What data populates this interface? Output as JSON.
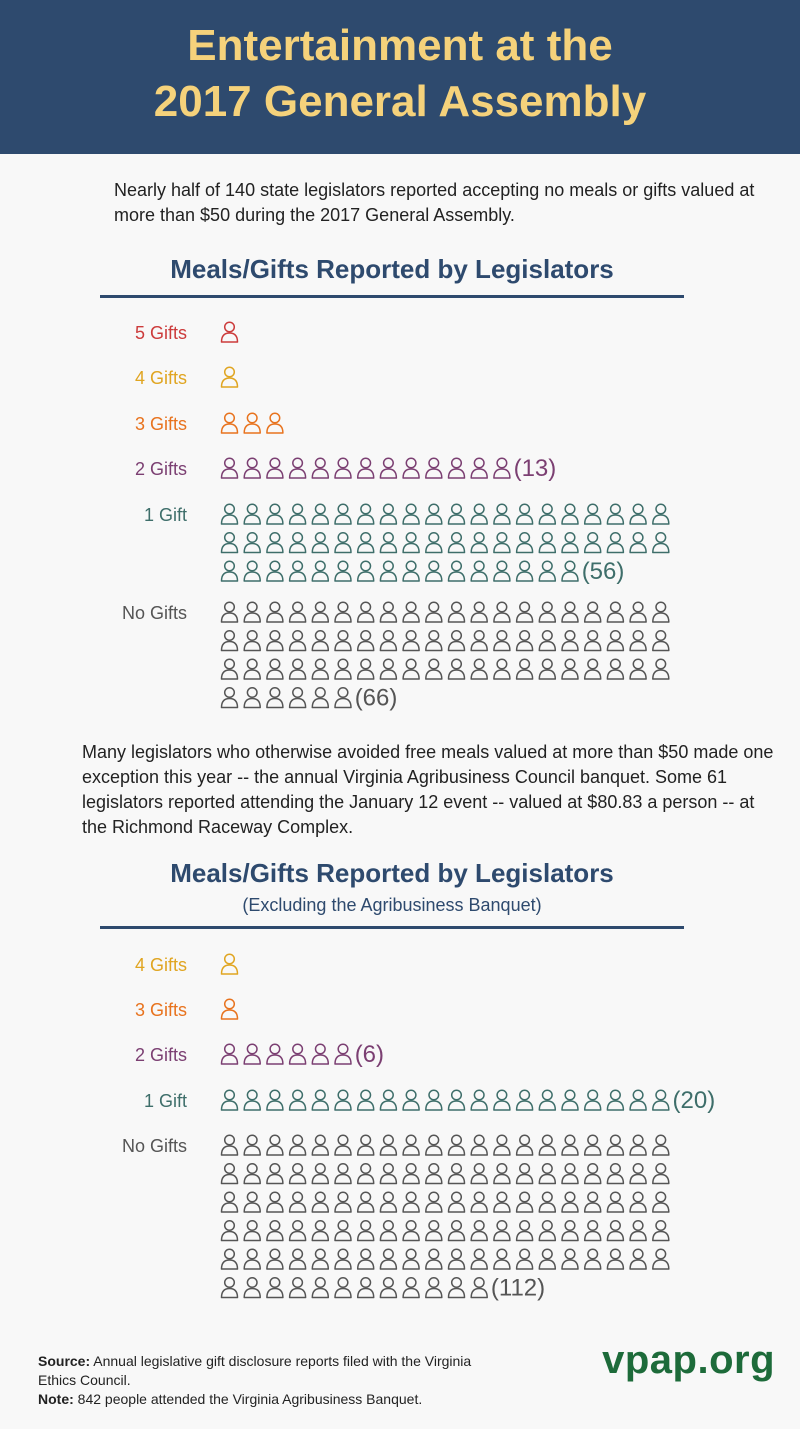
{
  "header": {
    "title_line1": "Entertainment at the",
    "title_line2": "2017 General Assembly"
  },
  "intro_text": "Nearly half of 140 state legislators reported accepting no meals or gifts valued at more than $50 during the 2017 General Assembly.",
  "middle_text": "Many legislators who otherwise avoided free meals valued at more than $50 made one exception this year -- the annual Virginia Agribusiness Council banquet. Some 61 legislators reported attending the January 12 event -- valued at $80.83 a person -- at the Richmond Raceway Complex.",
  "chart_data": [
    {
      "type": "pictograph",
      "title": "Meals/Gifts Reported by Legislators",
      "subtitle": "",
      "unit": "1 icon = 1 legislator",
      "rows": [
        {
          "label": "5 Gifts",
          "value": 1,
          "count_label": "",
          "color": "#cc3b3b"
        },
        {
          "label": "4 Gifts",
          "value": 1,
          "count_label": "",
          "color": "#e0a521"
        },
        {
          "label": "3 Gifts",
          "value": 3,
          "count_label": "",
          "color": "#e8731e"
        },
        {
          "label": "2 Gifts",
          "value": 13,
          "count_label": "(13)",
          "color": "#7b3f72"
        },
        {
          "label": "1 Gift",
          "value": 56,
          "count_label": "(56)",
          "color": "#3e6e6a"
        },
        {
          "label": "No Gifts",
          "value": 66,
          "count_label": "(66)",
          "color": "#555555"
        }
      ]
    },
    {
      "type": "pictograph",
      "title": "Meals/Gifts Reported by Legislators",
      "subtitle": "(Excluding the Agribusiness Banquet)",
      "unit": "1 icon = 1 legislator",
      "rows": [
        {
          "label": "4 Gifts",
          "value": 1,
          "count_label": "",
          "color": "#e0a521"
        },
        {
          "label": "3 Gifts",
          "value": 1,
          "count_label": "",
          "color": "#e8731e"
        },
        {
          "label": "2 Gifts",
          "value": 6,
          "count_label": "(6)",
          "color": "#7b3f72"
        },
        {
          "label": "1 Gift",
          "value": 20,
          "count_label": "(20)",
          "color": "#3e6e6a"
        },
        {
          "label": "No Gifts",
          "value": 112,
          "count_label": "(112)",
          "color": "#555555"
        }
      ]
    }
  ],
  "footer": {
    "source_label": "Source:",
    "source_text": "Annual legislative gift disclosure reports filed with the Virginia Ethics Council.",
    "note_label": "Note:",
    "note_text": "842 people attended the Virginia Agribusiness Banquet.",
    "logo_text": "vpap.org"
  }
}
